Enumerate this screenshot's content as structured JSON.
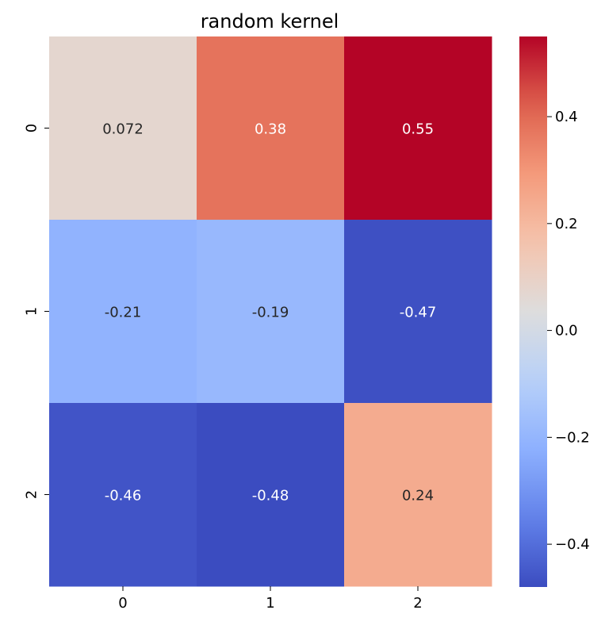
{
  "chart_data": {
    "type": "heatmap",
    "title": "random kernel",
    "xlabel": "",
    "ylabel": "",
    "x_tick_labels": [
      "0",
      "1",
      "2"
    ],
    "y_tick_labels": [
      "0",
      "1",
      "2"
    ],
    "values": [
      [
        0.072,
        0.38,
        0.55
      ],
      [
        -0.21,
        -0.19,
        -0.47
      ],
      [
        -0.46,
        -0.48,
        0.24
      ]
    ],
    "cell_labels": [
      [
        "0.072",
        "0.38",
        "0.55"
      ],
      [
        "-0.21",
        "-0.19",
        "-0.47"
      ],
      [
        "-0.46",
        "-0.48",
        "0.24"
      ]
    ],
    "colormap": "coolwarm",
    "colorbar": {
      "vmin": -0.48,
      "vmax": 0.55,
      "ticks": [
        0.4,
        0.2,
        0.0,
        -0.2,
        -0.4
      ],
      "tick_labels": [
        "0.4",
        "0.2",
        "0.0",
        "−0.2",
        "−0.4"
      ]
    },
    "annotation_colors": {
      "dark": "#262626",
      "light": "#ffffff"
    }
  }
}
